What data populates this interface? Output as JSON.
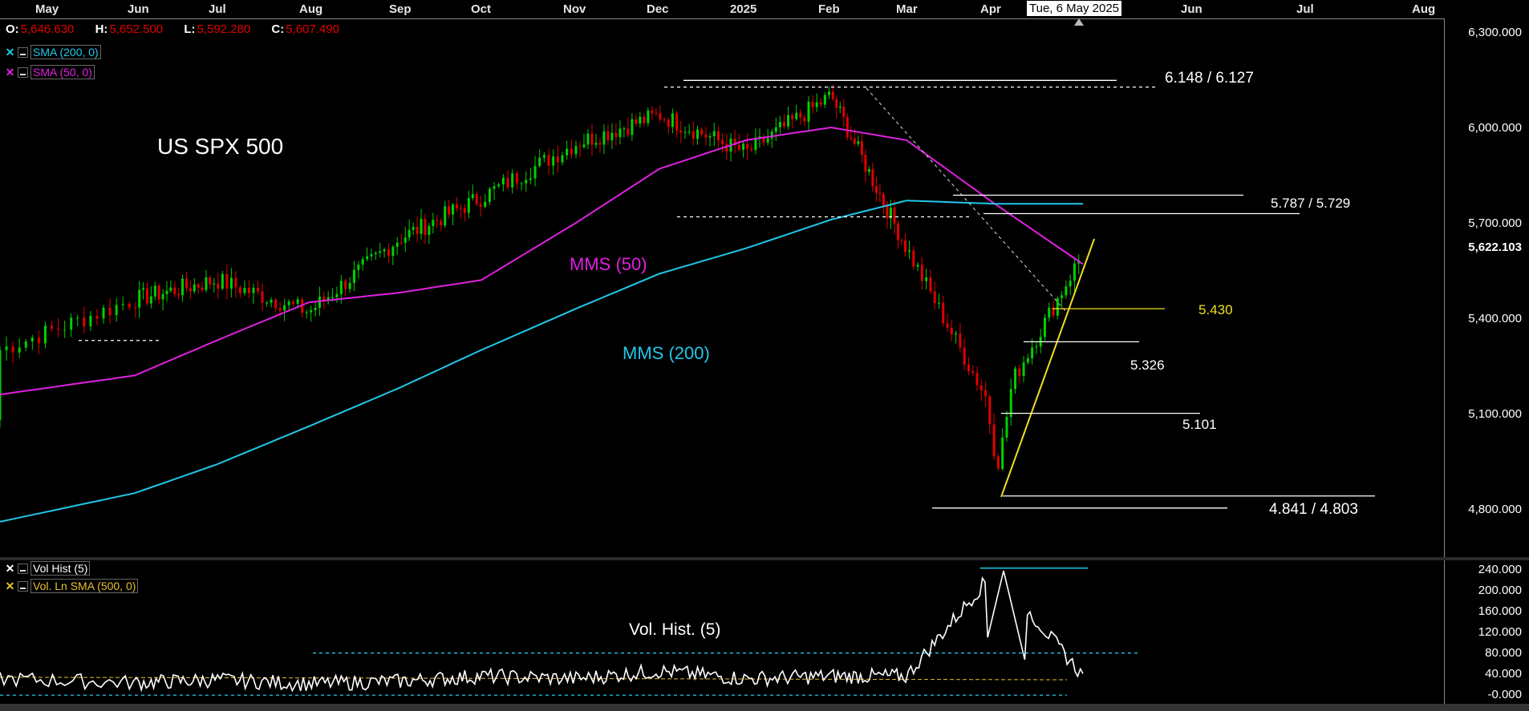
{
  "top_axis": {
    "months": [
      "May",
      "Jun",
      "Jul",
      "Aug",
      "Sep",
      "Oct",
      "Nov",
      "Dec",
      "2025",
      "Feb",
      "Mar",
      "Apr",
      "Jun",
      "Jul",
      "Aug"
    ],
    "highlight_date": "Tue, 6 May 2025"
  },
  "ohlc": {
    "o_key": "O:",
    "o": "5,646.630",
    "h_key": "H:",
    "h": "5,652.500",
    "l_key": "L:",
    "l": "5,592.280",
    "c_key": "C:",
    "c": "5,607.490"
  },
  "legends": {
    "sma200": "SMA (200, 0)",
    "sma50": "SMA (50, 0)",
    "volhist": "Vol Hist (5)",
    "volsma": "Vol. Ln SMA (500, 0)"
  },
  "annotations": {
    "title": "US SPX 500",
    "mms50": "MMS (50)",
    "mms200": "MMS (200)",
    "vol_title": "Vol. Hist. (5)",
    "lvl_6148": "6.148 / 6.127",
    "lvl_5787": "5.787 / 5.729",
    "lvl_5430": "5.430",
    "lvl_5326": "5.326",
    "lvl_5101": "5.101",
    "lvl_4841": "4.841 / 4.803"
  },
  "price_axis": [
    "6,300.000",
    "6,000.000",
    "5,700.000",
    "5,622.103",
    "5,400.000",
    "5,100.000",
    "4,800.000"
  ],
  "vol_axis": [
    "240.000",
    "200.000",
    "160.000",
    "120.000",
    "80.000",
    "40.000",
    "-0.000"
  ],
  "colors": {
    "up": "#00d000",
    "down": "#e00000",
    "sma50": "#e020e0",
    "sma200": "#20c8e8",
    "trend": "#f0e020",
    "level": "#ffffff",
    "vol_line": "#ffffff",
    "vol_ref": "#20c8e8",
    "vol_sma": "#e8c030"
  },
  "chart_data": [
    {
      "type": "candlestick",
      "title": "US SPX 500",
      "x": [
        "May",
        "Jun",
        "Jul",
        "Aug",
        "Sep",
        "Oct",
        "Nov",
        "Dec",
        "2025",
        "Feb",
        "Mar",
        "Apr",
        "May"
      ],
      "close": [
        5300,
        5460,
        5520,
        5420,
        5650,
        5780,
        5950,
        6040,
        5920,
        6100,
        5620,
        5000,
        5607
      ],
      "ylim": [
        4720,
        6330
      ],
      "series": [
        {
          "name": "SMA (50, 0)",
          "x": [
            "May",
            "Jun",
            "Jul",
            "Aug",
            "Sep",
            "Oct",
            "Nov",
            "Dec",
            "2025",
            "Feb",
            "Mar",
            "Apr",
            "May"
          ],
          "values": [
            5160,
            5220,
            5330,
            5450,
            5480,
            5520,
            5700,
            5870,
            5960,
            6000,
            5960,
            5760,
            5570
          ]
        },
        {
          "name": "SMA (200, 0)",
          "x": [
            "May",
            "Jun",
            "Jul",
            "Aug",
            "Sep",
            "Oct",
            "Nov",
            "Dec",
            "2025",
            "Feb",
            "Mar",
            "Apr",
            "May"
          ],
          "values": [
            4760,
            4850,
            4940,
            5060,
            5180,
            5300,
            5430,
            5540,
            5620,
            5710,
            5770,
            5760,
            5760
          ]
        }
      ],
      "levels": [
        6148,
        6127,
        5787,
        5729,
        5430,
        5326,
        5101,
        4841,
        4803
      ]
    },
    {
      "type": "line",
      "title": "Vol. Hist. (5)",
      "x": [
        "May",
        "Jun",
        "Jul",
        "Aug",
        "Sep",
        "Oct",
        "Nov",
        "Dec",
        "2025",
        "Feb",
        "Mar",
        "Apr",
        "May"
      ],
      "series": [
        {
          "name": "Vol Hist (5)",
          "values": [
            30,
            22,
            28,
            20,
            25,
            35,
            30,
            45,
            30,
            35,
            35,
            240,
            35
          ]
        },
        {
          "name": "Vol. Ln SMA (500, 0)",
          "values": [
            30,
            30,
            30,
            30,
            30,
            30,
            30,
            30,
            30,
            30,
            30,
            30,
            30
          ]
        }
      ],
      "ylim": [
        -5,
        250
      ]
    }
  ]
}
